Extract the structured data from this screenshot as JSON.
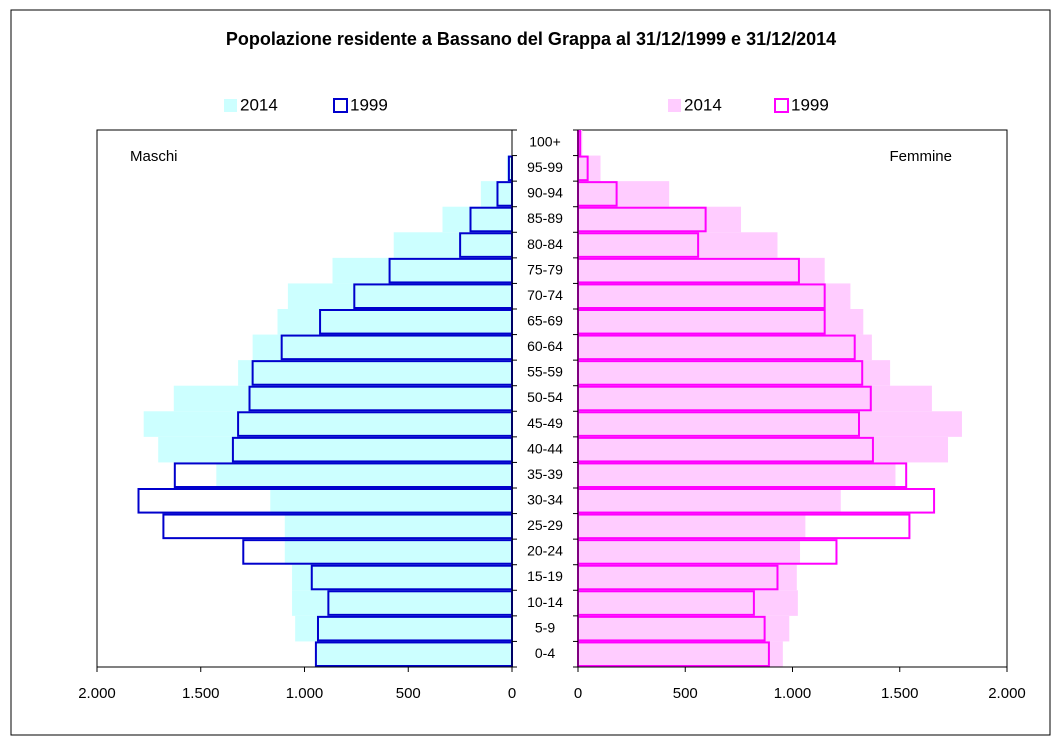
{
  "chart_data": {
    "type": "pyramid",
    "title": "Popolazione residente a Bassano del Grappa al 31/12/1999 e 31/12/2014",
    "categories": [
      "0-4",
      "5-9",
      "10-14",
      "15-19",
      "20-24",
      "25-29",
      "30-34",
      "35-39",
      "40-44",
      "45-49",
      "50-54",
      "55-59",
      "60-64",
      "65-69",
      "70-74",
      "75-79",
      "80-84",
      "85-89",
      "90-94",
      "95-99",
      "100+"
    ],
    "panels": [
      {
        "label": "Maschi",
        "xlim": [
          2000,
          0
        ],
        "xticks": [
          {
            "value": 2000,
            "label": "2.000"
          },
          {
            "value": 1500,
            "label": "1.500"
          },
          {
            "value": 1000,
            "label": "1.000"
          },
          500,
          0
        ],
        "series": [
          {
            "name": "2014",
            "color": "#ccffff",
            "style": "fill",
            "values": [
              940,
              1045,
              1060,
              1060,
              1095,
              1095,
              1165,
              1425,
              1705,
              1775,
              1630,
              1320,
              1250,
              1130,
              1080,
              865,
              570,
              335,
              150,
              25,
              2
            ]
          },
          {
            "name": "1999",
            "color": "#0000cc",
            "style": "outline",
            "values": [
              945,
              935,
              885,
              965,
              1295,
              1680,
              1800,
              1625,
              1345,
              1320,
              1265,
              1250,
              1110,
              925,
              760,
              590,
              250,
              200,
              70,
              15,
              0
            ]
          }
        ]
      },
      {
        "label": "Femmine",
        "xlim": [
          0,
          2000
        ],
        "xticks": [
          0,
          500,
          {
            "value": 1000,
            "label": "1.000"
          },
          {
            "value": 1500,
            "label": "1.500"
          },
          {
            "value": 2000,
            "label": "2.000"
          }
        ],
        "series": [
          {
            "name": "2014",
            "color": "#ffccff",
            "style": "fill",
            "values": [
              955,
              985,
              1025,
              1020,
              1035,
              1060,
              1225,
              1480,
              1725,
              1790,
              1650,
              1455,
              1370,
              1330,
              1270,
              1150,
              930,
              760,
              425,
              105,
              20
            ]
          },
          {
            "name": "1999",
            "color": "#ff00ff",
            "style": "outline",
            "values": [
              890,
              870,
              820,
              930,
              1205,
              1545,
              1660,
              1530,
              1375,
              1310,
              1365,
              1325,
              1290,
              1150,
              1150,
              1030,
              560,
              595,
              180,
              45,
              10
            ]
          }
        ]
      }
    ]
  }
}
